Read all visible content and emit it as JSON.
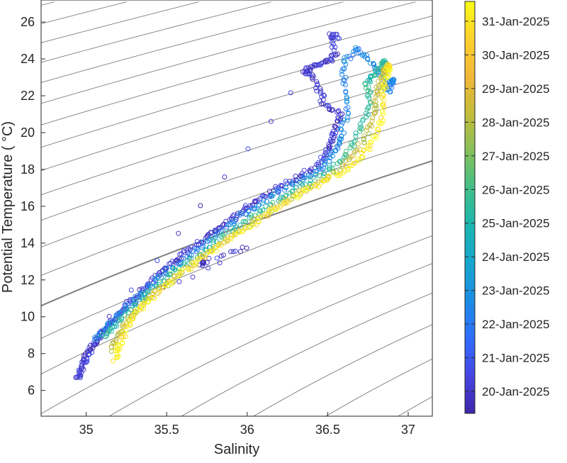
{
  "chart_data": {
    "type": "scatter",
    "xlabel": "Salinity",
    "ylabel": "Potential Temperature ( °C)",
    "xlim": [
      34.72,
      37.15
    ],
    "ylim": [
      4.6,
      27.2
    ],
    "xticks": [
      35,
      35.5,
      36,
      36.5,
      37
    ],
    "xtick_labels": [
      "35",
      "35.5",
      "36",
      "36.5",
      "37"
    ],
    "yticks": [
      6,
      8,
      10,
      12,
      14,
      16,
      18,
      20,
      22,
      24,
      26
    ],
    "ytick_labels": [
      "6",
      "8",
      "10",
      "12",
      "14",
      "16",
      "18",
      "20",
      "22",
      "24",
      "26"
    ],
    "grid": false,
    "marker": "open-circle",
    "colorbar": {
      "label_type": "date",
      "range": [
        "19-Jan-2025",
        "31-Jan-2025"
      ],
      "ticks": [
        "20-Jan-2025",
        "21-Jan-2025",
        "22-Jan-2025",
        "23-Jan-2025",
        "24-Jan-2025",
        "25-Jan-2025",
        "26-Jan-2025",
        "27-Jan-2025",
        "28-Jan-2025",
        "29-Jan-2025",
        "30-Jan-2025",
        "31-Jan-2025"
      ],
      "colormap": [
        "#3e26a8",
        "#4745e3",
        "#2f6dff",
        "#1d8ce5",
        "#16a6cf",
        "#1ab5b0",
        "#41bf88",
        "#86c05b",
        "#c4bc3a",
        "#f3b838",
        "#fcd02e",
        "#f9fb15"
      ]
    },
    "density_contours": {
      "description_values": "isopycnal lines of constant density",
      "highlighted": "one thicker contour"
    },
    "series": [
      {
        "date_group": "20-Jan-2025",
        "points": [
          [
            34.95,
            6.6
          ],
          [
            34.96,
            7.0
          ],
          [
            34.98,
            7.4
          ],
          [
            35.0,
            7.8
          ],
          [
            35.02,
            8.1
          ],
          [
            35.05,
            8.5
          ],
          [
            35.08,
            8.9
          ],
          [
            35.12,
            9.3
          ],
          [
            35.17,
            9.8
          ],
          [
            35.22,
            10.3
          ],
          [
            35.28,
            10.9
          ],
          [
            35.35,
            11.5
          ],
          [
            35.42,
            12.1
          ],
          [
            35.5,
            12.7
          ],
          [
            35.58,
            13.2
          ],
          [
            35.66,
            13.7
          ],
          [
            35.74,
            14.3
          ],
          [
            35.82,
            14.8
          ],
          [
            35.9,
            15.3
          ],
          [
            35.98,
            15.8
          ],
          [
            36.06,
            16.3
          ],
          [
            36.16,
            16.8
          ],
          [
            36.26,
            17.3
          ],
          [
            36.36,
            17.8
          ],
          [
            36.44,
            18.3
          ],
          [
            36.5,
            18.9
          ],
          [
            36.53,
            19.6
          ],
          [
            36.55,
            20.3
          ],
          [
            36.58,
            21.0
          ],
          [
            36.48,
            21.5
          ],
          [
            36.45,
            22.3
          ],
          [
            36.4,
            23.1
          ],
          [
            36.35,
            23.4
          ],
          [
            36.42,
            23.6
          ],
          [
            36.5,
            23.9
          ],
          [
            36.55,
            24.2
          ],
          [
            36.52,
            25.3
          ],
          [
            36.56,
            25.2
          ],
          [
            35.15,
            10.0
          ],
          [
            36.0,
            13.8
          ],
          [
            35.72,
            12.9
          ]
        ]
      },
      {
        "date_group": "22-Jan-2025",
        "points": [
          [
            35.05,
            8.8
          ],
          [
            35.12,
            9.4
          ],
          [
            35.2,
            10.1
          ],
          [
            35.3,
            10.9
          ],
          [
            35.4,
            11.7
          ],
          [
            35.5,
            12.4
          ],
          [
            35.62,
            13.2
          ],
          [
            35.74,
            14.0
          ],
          [
            35.86,
            14.8
          ],
          [
            35.98,
            15.6
          ],
          [
            36.1,
            16.3
          ],
          [
            36.24,
            17.0
          ],
          [
            36.38,
            17.6
          ],
          [
            36.48,
            18.2
          ],
          [
            36.54,
            19.0
          ],
          [
            36.58,
            19.8
          ],
          [
            36.62,
            21.0
          ],
          [
            36.6,
            22.5
          ],
          [
            36.6,
            23.8
          ],
          [
            36.68,
            24.6
          ],
          [
            36.75,
            24.0
          ],
          [
            36.82,
            23.2
          ],
          [
            36.88,
            22.2
          ],
          [
            36.9,
            22.8
          ]
        ]
      },
      {
        "date_group": "25-Jan-2025",
        "points": [
          [
            35.1,
            8.9
          ],
          [
            35.18,
            9.6
          ],
          [
            35.28,
            10.5
          ],
          [
            35.38,
            11.3
          ],
          [
            35.5,
            12.1
          ],
          [
            35.62,
            12.9
          ],
          [
            35.76,
            13.8
          ],
          [
            35.9,
            14.7
          ],
          [
            36.04,
            15.5
          ],
          [
            36.18,
            16.3
          ],
          [
            36.32,
            17.0
          ],
          [
            36.46,
            17.7
          ],
          [
            36.58,
            18.4
          ],
          [
            36.66,
            19.4
          ],
          [
            36.72,
            20.6
          ],
          [
            36.76,
            21.8
          ],
          [
            36.74,
            22.8
          ],
          [
            36.8,
            23.2
          ],
          [
            36.85,
            23.8
          ]
        ]
      },
      {
        "date_group": "28-Jan-2025",
        "points": [
          [
            35.16,
            8.2
          ],
          [
            35.2,
            9.0
          ],
          [
            35.26,
            9.8
          ],
          [
            35.34,
            10.6
          ],
          [
            35.44,
            11.4
          ],
          [
            35.56,
            12.2
          ],
          [
            35.68,
            13.0
          ],
          [
            35.82,
            13.9
          ],
          [
            35.96,
            14.7
          ],
          [
            36.1,
            15.5
          ],
          [
            36.24,
            16.3
          ],
          [
            36.38,
            17.0
          ],
          [
            36.52,
            17.7
          ],
          [
            36.64,
            18.5
          ],
          [
            36.72,
            19.5
          ],
          [
            36.78,
            20.7
          ],
          [
            36.8,
            21.8
          ],
          [
            36.82,
            22.8
          ],
          [
            36.86,
            23.4
          ]
        ]
      },
      {
        "date_group": "31-Jan-2025",
        "points": [
          [
            35.18,
            7.7
          ],
          [
            35.2,
            8.4
          ],
          [
            35.24,
            9.2
          ],
          [
            35.3,
            10.1
          ],
          [
            35.4,
            11.0
          ],
          [
            35.52,
            11.9
          ],
          [
            35.64,
            12.7
          ],
          [
            35.78,
            13.6
          ],
          [
            35.92,
            14.4
          ],
          [
            36.06,
            15.2
          ],
          [
            36.2,
            16.0
          ],
          [
            36.34,
            16.7
          ],
          [
            36.48,
            17.4
          ],
          [
            36.62,
            18.0
          ],
          [
            36.72,
            18.8
          ],
          [
            36.8,
            19.8
          ],
          [
            36.84,
            21.0
          ],
          [
            36.85,
            22.2
          ],
          [
            36.86,
            23.0
          ],
          [
            36.88,
            23.6
          ]
        ]
      }
    ]
  }
}
